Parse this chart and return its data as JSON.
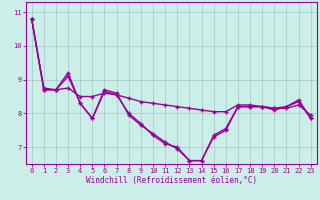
{
  "xlabel": "Windchill (Refroidissement éolien,°C)",
  "xlim": [
    -0.5,
    23.5
  ],
  "ylim": [
    6.5,
    11.3
  ],
  "yticks": [
    7,
    8,
    9,
    10,
    11
  ],
  "xticks": [
    0,
    1,
    2,
    3,
    4,
    5,
    6,
    7,
    8,
    9,
    10,
    11,
    12,
    13,
    14,
    15,
    16,
    17,
    18,
    19,
    20,
    21,
    22,
    23
  ],
  "bg_color": "#cceee8",
  "grid_color": "#aacccc",
  "line_color": "#990099",
  "line1_y": [
    10.8,
    8.7,
    8.7,
    9.2,
    8.3,
    7.85,
    8.7,
    8.6,
    7.95,
    7.65,
    7.4,
    7.15,
    6.95,
    6.6,
    6.6,
    7.35,
    7.55,
    8.2,
    8.2,
    8.2,
    8.15,
    8.2,
    8.4,
    7.85
  ],
  "line2_y": [
    10.8,
    8.7,
    8.7,
    9.1,
    8.3,
    7.85,
    8.65,
    8.55,
    8.0,
    7.7,
    7.35,
    7.1,
    7.0,
    6.6,
    6.6,
    7.3,
    7.5,
    8.2,
    8.2,
    8.2,
    8.1,
    8.2,
    8.35,
    7.85
  ],
  "line3_y": [
    10.8,
    8.75,
    8.7,
    8.75,
    8.5,
    8.5,
    8.6,
    8.55,
    8.45,
    8.35,
    8.3,
    8.25,
    8.2,
    8.15,
    8.1,
    8.05,
    8.05,
    8.25,
    8.25,
    8.2,
    8.15,
    8.15,
    8.25,
    7.95
  ]
}
